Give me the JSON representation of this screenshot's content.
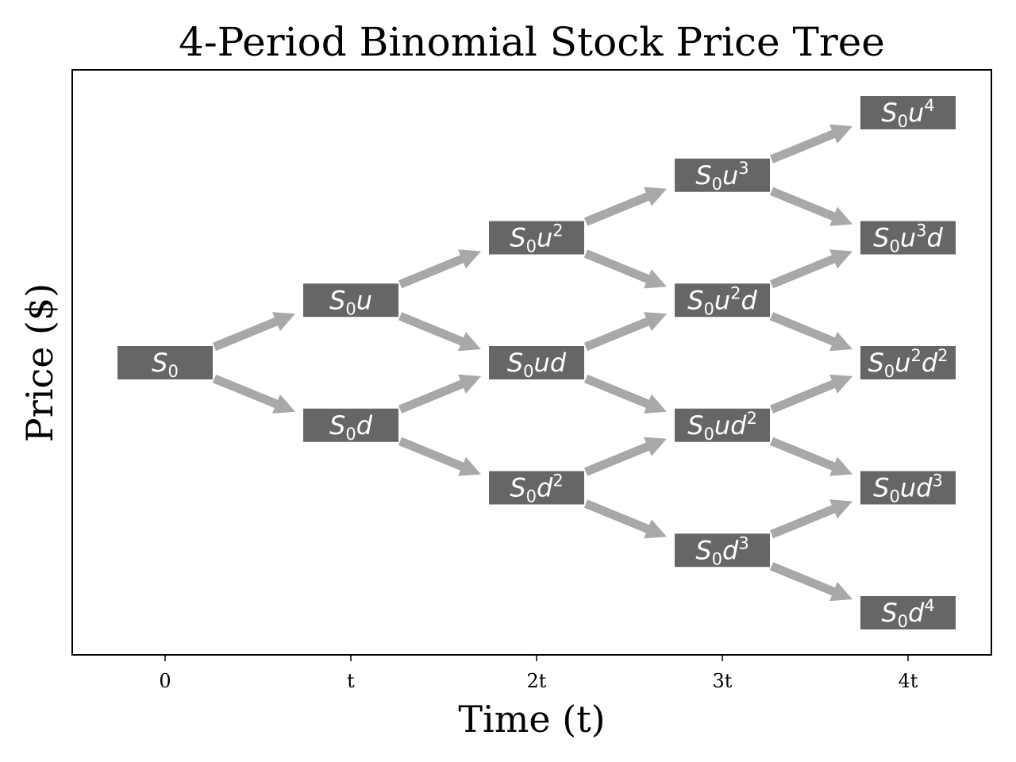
{
  "title": "4-Period Binomial Stock Price Tree",
  "xlabel": "Time (t)",
  "ylabel": "Price ($)",
  "colors": {
    "node_fill": "#666666",
    "node_text": "#ffffff",
    "arrow": "#a8a8a8",
    "frame": "#000000",
    "text": "#000000"
  },
  "chart_data": {
    "type": "tree",
    "periods": 4,
    "x_ticks": [
      "0",
      "t",
      "2t",
      "3t",
      "4t"
    ],
    "nodes": [
      {
        "step": 0,
        "ups": 0,
        "label": [
          {
            "t": "S"
          },
          {
            "sub": "0"
          }
        ]
      },
      {
        "step": 1,
        "ups": 1,
        "label": [
          {
            "t": "S"
          },
          {
            "sub": "0"
          },
          {
            "t": "u"
          }
        ]
      },
      {
        "step": 1,
        "ups": 0,
        "label": [
          {
            "t": "S"
          },
          {
            "sub": "0"
          },
          {
            "t": "d"
          }
        ]
      },
      {
        "step": 2,
        "ups": 2,
        "label": [
          {
            "t": "S"
          },
          {
            "sub": "0"
          },
          {
            "t": "u"
          },
          {
            "sup": "2"
          }
        ]
      },
      {
        "step": 2,
        "ups": 1,
        "label": [
          {
            "t": "S"
          },
          {
            "sub": "0"
          },
          {
            "t": "ud"
          }
        ]
      },
      {
        "step": 2,
        "ups": 0,
        "label": [
          {
            "t": "S"
          },
          {
            "sub": "0"
          },
          {
            "t": "d"
          },
          {
            "sup": "2"
          }
        ]
      },
      {
        "step": 3,
        "ups": 3,
        "label": [
          {
            "t": "S"
          },
          {
            "sub": "0"
          },
          {
            "t": "u"
          },
          {
            "sup": "3"
          }
        ]
      },
      {
        "step": 3,
        "ups": 2,
        "label": [
          {
            "t": "S"
          },
          {
            "sub": "0"
          },
          {
            "t": "u"
          },
          {
            "sup": "2"
          },
          {
            "t": "d"
          }
        ]
      },
      {
        "step": 3,
        "ups": 1,
        "label": [
          {
            "t": "S"
          },
          {
            "sub": "0"
          },
          {
            "t": "ud"
          },
          {
            "sup": "2"
          }
        ]
      },
      {
        "step": 3,
        "ups": 0,
        "label": [
          {
            "t": "S"
          },
          {
            "sub": "0"
          },
          {
            "t": "d"
          },
          {
            "sup": "3"
          }
        ]
      },
      {
        "step": 4,
        "ups": 4,
        "label": [
          {
            "t": "S"
          },
          {
            "sub": "0"
          },
          {
            "t": "u"
          },
          {
            "sup": "4"
          }
        ]
      },
      {
        "step": 4,
        "ups": 3,
        "label": [
          {
            "t": "S"
          },
          {
            "sub": "0"
          },
          {
            "t": "u"
          },
          {
            "sup": "3"
          },
          {
            "t": "d"
          }
        ]
      },
      {
        "step": 4,
        "ups": 2,
        "label": [
          {
            "t": "S"
          },
          {
            "sub": "0"
          },
          {
            "t": "u"
          },
          {
            "sup": "2"
          },
          {
            "t": "d"
          },
          {
            "sup": "2"
          }
        ]
      },
      {
        "step": 4,
        "ups": 1,
        "label": [
          {
            "t": "S"
          },
          {
            "sub": "0"
          },
          {
            "t": "ud"
          },
          {
            "sup": "3"
          }
        ]
      },
      {
        "step": 4,
        "ups": 0,
        "label": [
          {
            "t": "S"
          },
          {
            "sub": "0"
          },
          {
            "t": "d"
          },
          {
            "sup": "4"
          }
        ]
      }
    ]
  }
}
